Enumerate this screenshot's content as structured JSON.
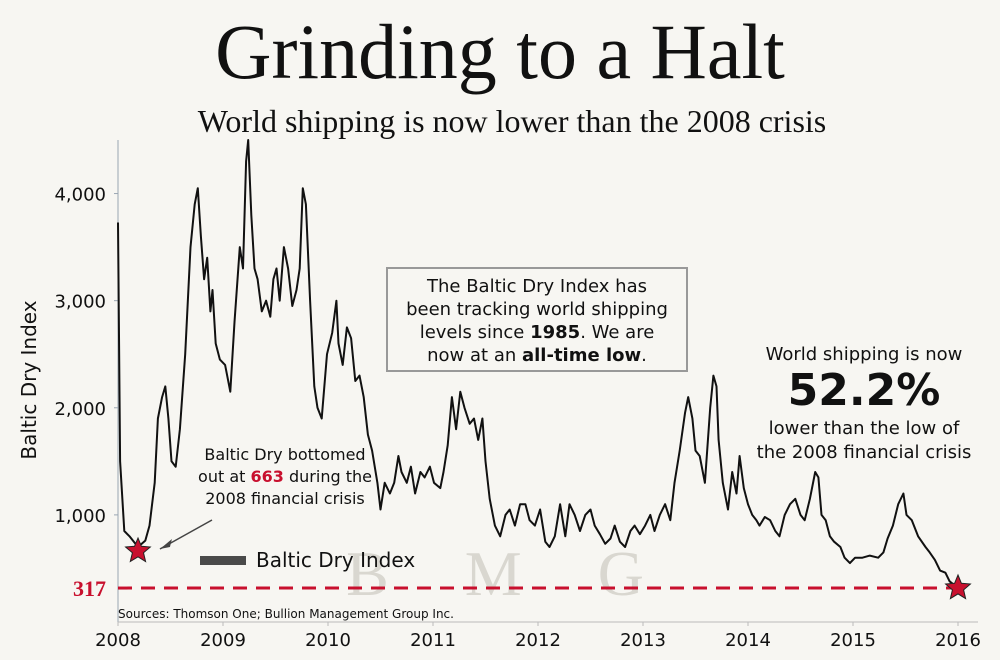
{
  "chart_data": {
    "type": "line",
    "title": "Grinding to a Halt",
    "subtitle": "World shipping is now lower than the 2008 crisis",
    "ylabel": "Baltic Dry Index",
    "source": "Sources: Thomson One; Bullion Management Group Inc.",
    "watermark": "B M G",
    "xlim": [
      2008,
      2016
    ],
    "xticks": [
      2008,
      2009,
      2010,
      2011,
      2012,
      2013,
      2014,
      2015,
      2016
    ],
    "ylim": [
      0,
      4500
    ],
    "yticks": [
      {
        "value": 1000,
        "label": "1,000"
      },
      {
        "value": 2000,
        "label": "2,000"
      },
      {
        "value": 3000,
        "label": "3,000"
      },
      {
        "value": 4000,
        "label": "4,000"
      }
    ],
    "legend": "bottom-left",
    "series": [
      {
        "name": "Baltic Dry Index",
        "color": "#111111",
        "x": [
          2008.0,
          2008.02,
          2008.06,
          2008.11,
          2008.19,
          2008.26,
          2008.3,
          2008.35,
          2008.38,
          2008.42,
          2008.45,
          2008.48,
          2008.51,
          2008.55,
          2008.59,
          2008.64,
          2008.69,
          2008.73,
          2008.76,
          2008.79,
          2008.82,
          2008.85,
          2008.88,
          2008.9,
          2008.93,
          2008.97,
          2009.02,
          2009.07,
          2009.11,
          2009.16,
          2009.19,
          2009.22,
          2009.24,
          2009.27,
          2009.3,
          2009.33,
          2009.37,
          2009.41,
          2009.45,
          2009.48,
          2009.51,
          2009.54,
          2009.58,
          2009.62,
          2009.66,
          2009.7,
          2009.73,
          2009.76,
          2009.79,
          2009.83,
          2009.87,
          2009.9,
          2009.94,
          2009.99,
          2010.04,
          2010.08,
          2010.1,
          2010.14,
          2010.18,
          2010.22,
          2010.26,
          2010.3,
          2010.34,
          2010.38,
          2010.42,
          2010.47,
          2010.5,
          2010.54,
          2010.59,
          2010.63,
          2010.67,
          2010.7,
          2010.75,
          2010.79,
          2010.83,
          2010.88,
          2010.92,
          2010.97,
          2011.01,
          2011.07,
          2011.1,
          2011.14,
          2011.18,
          2011.22,
          2011.26,
          2011.3,
          2011.35,
          2011.39,
          2011.43,
          2011.47,
          2011.5,
          2011.54,
          2011.59,
          2011.64,
          2011.69,
          2011.73,
          2011.78,
          2011.83,
          2011.88,
          2011.92,
          2011.97,
          2012.02,
          2012.07,
          2012.11,
          2012.16,
          2012.21,
          2012.26,
          2012.3,
          2012.35,
          2012.4,
          2012.45,
          2012.5,
          2012.54,
          2012.59,
          2012.64,
          2012.69,
          2012.73,
          2012.78,
          2012.83,
          2012.88,
          2012.92,
          2012.97,
          2013.02,
          2013.07,
          2013.11,
          2013.16,
          2013.21,
          2013.26,
          2013.3,
          2013.35,
          2013.4,
          2013.43,
          2013.47,
          2013.5,
          2013.54,
          2013.59,
          2013.64,
          2013.67,
          2013.7,
          2013.72,
          2013.76,
          2013.81,
          2013.85,
          2013.89,
          2013.92,
          2013.96,
          2014.0,
          2014.04,
          2014.08,
          2014.11,
          2014.16,
          2014.21,
          2014.26,
          2014.3,
          2014.35,
          2014.4,
          2014.45,
          2014.5,
          2014.54,
          2014.59,
          2014.64,
          2014.67,
          2014.7,
          2014.74,
          2014.78,
          2014.82,
          2014.88,
          2014.92,
          2014.97,
          2015.02,
          2015.09,
          2015.16,
          2015.24,
          2015.29,
          2015.33,
          2015.38,
          2015.43,
          2015.48,
          2015.51,
          2015.56,
          2015.62,
          2015.69,
          2015.73,
          2015.78,
          2015.83,
          2015.88,
          2015.92,
          2016.0
        ],
        "values": [
          3730,
          1500,
          850,
          800,
          700,
          760,
          900,
          1300,
          1900,
          2100,
          2200,
          1900,
          1500,
          1450,
          1800,
          2500,
          3500,
          3900,
          4050,
          3600,
          3200,
          3400,
          2900,
          3100,
          2600,
          2450,
          2400,
          2150,
          2800,
          3500,
          3300,
          4300,
          4500,
          3800,
          3300,
          3200,
          2900,
          3000,
          2850,
          3200,
          3300,
          3000,
          3500,
          3300,
          2950,
          3100,
          3300,
          4050,
          3900,
          3000,
          2200,
          2000,
          1900,
          2500,
          2700,
          3000,
          2600,
          2400,
          2750,
          2650,
          2250,
          2300,
          2100,
          1750,
          1600,
          1300,
          1050,
          1300,
          1200,
          1300,
          1550,
          1400,
          1300,
          1450,
          1200,
          1400,
          1350,
          1450,
          1300,
          1250,
          1400,
          1650,
          2100,
          1800,
          2150,
          2000,
          1850,
          1900,
          1700,
          1900,
          1500,
          1150,
          900,
          800,
          1000,
          1050,
          900,
          1100,
          1100,
          950,
          900,
          1050,
          750,
          700,
          800,
          1100,
          800,
          1100,
          1000,
          850,
          1000,
          1050,
          900,
          820,
          730,
          780,
          900,
          750,
          700,
          850,
          900,
          820,
          900,
          1000,
          850,
          1000,
          1100,
          950,
          1300,
          1600,
          1950,
          2100,
          1900,
          1600,
          1550,
          1300,
          2000,
          2300,
          2200,
          1700,
          1300,
          1050,
          1400,
          1200,
          1550,
          1250,
          1100,
          1000,
          950,
          900,
          980,
          950,
          850,
          800,
          1000,
          1100,
          1150,
          1000,
          950,
          1150,
          1400,
          1350,
          1000,
          950,
          800,
          750,
          700,
          600,
          550,
          600,
          600,
          620,
          600,
          650,
          780,
          900,
          1100,
          1200,
          1000,
          950,
          800,
          700,
          650,
          580,
          480,
          460,
          380,
          317
        ]
      }
    ],
    "markers": [
      {
        "x": 2008.19,
        "y": 663
      },
      {
        "x": 2016.0,
        "y": 317
      }
    ],
    "marker_color": "#c8102e",
    "box_note": [
      [
        {
          "text": "The Baltic Dry Index has"
        }
      ],
      [
        {
          "text": "been tracking world shipping"
        }
      ],
      [
        {
          "text": "levels since "
        },
        {
          "text": "1985",
          "bold": true
        },
        {
          "text": ".  We are"
        }
      ],
      [
        {
          "text": "now at an "
        },
        {
          "text": "all-time low",
          "bold": true
        },
        {
          "text": "."
        }
      ]
    ],
    "right_note": {
      "lines_top": [
        "World shipping is now"
      ],
      "big": "52.2%",
      "lines_bottom": [
        "lower than the low of",
        "the 2008 financial crisis"
      ]
    },
    "low_note": {
      "line1": "Baltic Dry bottomed",
      "before": "out at ",
      "after": " during the",
      "line3": "2008 financial crisis"
    }
  }
}
